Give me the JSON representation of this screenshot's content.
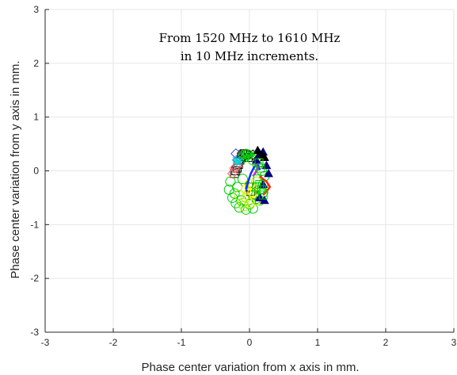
{
  "chart_data": {
    "type": "scatter",
    "title": "",
    "xlabel": "Phase center variation from x axis in mm.",
    "ylabel": "Phase center variation from y axis in mm.",
    "xlim": [
      -3,
      3
    ],
    "ylim": [
      -3,
      3
    ],
    "xticks": [
      -3,
      -2,
      -1,
      0,
      1,
      2,
      3
    ],
    "yticks": [
      -3,
      -2,
      -1,
      0,
      1,
      2,
      3
    ],
    "xtick_labels": [
      "-3",
      "-2",
      "-1",
      "0",
      "1",
      "2",
      "3"
    ],
    "ytick_labels": [
      "-3",
      "-2",
      "-1",
      "0",
      "1",
      "2",
      "3"
    ],
    "grid": true,
    "legend": "none",
    "annotation": {
      "line1": "From 1520 MHz to 1610 MHz",
      "line2": "in 10 MHz increments."
    },
    "series": [
      {
        "marker": "square",
        "color": "#000000",
        "x": [
          -0.22,
          -0.2,
          -0.18,
          -0.16,
          -0.14,
          -0.12,
          -0.1,
          -0.08,
          -0.05,
          -0.02,
          0.0,
          0.02,
          0.05
        ],
        "y": [
          -0.05,
          0.0,
          0.05,
          0.12,
          0.2,
          0.26,
          0.3,
          0.32,
          0.3,
          0.25,
          -0.3,
          -0.38,
          -0.45
        ]
      },
      {
        "marker": "circle",
        "color": "#00cc00",
        "x": [
          -0.3,
          -0.28,
          -0.25,
          -0.22,
          -0.2,
          -0.18,
          -0.15,
          -0.12,
          -0.1,
          -0.05,
          0.0,
          0.05,
          0.1,
          0.15,
          0.2,
          0.22,
          0.18,
          0.12,
          0.05,
          -0.02,
          -0.08,
          0.1,
          0.15,
          0.2
        ],
        "y": [
          -0.35,
          -0.2,
          -0.5,
          -0.42,
          -0.6,
          -0.3,
          -0.68,
          -0.55,
          -0.15,
          -0.72,
          -0.62,
          -0.7,
          -0.52,
          -0.35,
          -0.25,
          -0.1,
          0.0,
          0.1,
          0.2,
          0.3,
          0.25,
          -0.45,
          -0.55,
          -0.4
        ]
      },
      {
        "marker": "circle",
        "color": "#aaee00",
        "x": [
          -0.1,
          -0.05,
          0.0,
          0.05,
          0.1,
          -0.15,
          -0.08
        ],
        "y": [
          -0.6,
          -0.5,
          -0.4,
          -0.3,
          -0.2,
          -0.45,
          -0.65
        ]
      },
      {
        "marker": "circle",
        "color": "#ffff00",
        "x": [
          -0.05,
          0.0,
          0.05,
          0.1,
          0.0
        ],
        "y": [
          -0.35,
          -0.25,
          -0.4,
          -0.55,
          -0.6
        ]
      },
      {
        "marker": "line",
        "color": "#0033ff",
        "x": [
          -0.05,
          -0.02,
          0.02,
          0.06,
          0.1,
          0.13,
          0.15
        ],
        "y": [
          -0.35,
          -0.2,
          -0.05,
          0.05,
          0.12,
          0.1,
          0.02
        ]
      },
      {
        "marker": "line",
        "color": "#ff00ff",
        "x": [
          0.05,
          0.08,
          0.1,
          0.12,
          0.1,
          0.08
        ],
        "y": [
          -0.1,
          -0.05,
          0.0,
          0.05,
          0.12,
          0.2
        ]
      },
      {
        "marker": "line",
        "color": "#ff2200",
        "x": [
          0.15,
          0.2,
          0.25,
          0.3,
          0.25,
          0.2
        ],
        "y": [
          -0.1,
          -0.15,
          -0.2,
          -0.3,
          -0.38,
          -0.45
        ]
      },
      {
        "marker": "triangle",
        "color": "#000080",
        "x": [
          0.1,
          0.15,
          0.2,
          0.25,
          0.28,
          0.2,
          0.15,
          0.22
        ],
        "y": [
          0.2,
          0.32,
          0.35,
          0.1,
          -0.05,
          -0.25,
          -0.5,
          -0.55
        ]
      },
      {
        "marker": "triangle",
        "color": "#000000",
        "x": [
          0.12,
          0.18,
          0.22
        ],
        "y": [
          0.38,
          0.3,
          0.25
        ]
      },
      {
        "marker": "diamond",
        "color": "#4444cc",
        "x": [
          -0.2,
          -0.18
        ],
        "y": [
          0.32,
          0.2
        ]
      },
      {
        "marker": "diamond",
        "color": "#000000",
        "x": [
          -0.12,
          0.05
        ],
        "y": [
          0.22,
          0.3
        ]
      },
      {
        "marker": "diamond",
        "color": "#ff6666",
        "x": [
          -0.22,
          -0.18,
          -0.25
        ],
        "y": [
          0.05,
          0.1,
          -0.05
        ]
      },
      {
        "marker": "diamond",
        "color": "#00cc00",
        "x": [
          -0.1,
          -0.05
        ],
        "y": [
          0.3,
          0.32
        ]
      },
      {
        "marker": "asterisk",
        "color": "#00dddd",
        "x": [
          -0.2,
          -0.15,
          -0.18
        ],
        "y": [
          0.2,
          0.18,
          0.15
        ]
      },
      {
        "marker": "asterisk",
        "color": "#00cc00",
        "x": [
          -0.08,
          -0.02,
          0.03
        ],
        "y": [
          0.25,
          0.28,
          0.3
        ]
      },
      {
        "marker": "square",
        "color": "#00cc00",
        "x": [
          0.12,
          0.15,
          0.1,
          0.18,
          0.2,
          0.14,
          0.16
        ],
        "y": [
          -0.15,
          -0.25,
          -0.3,
          -0.35,
          -0.45,
          0.15,
          0.05
        ]
      }
    ]
  }
}
